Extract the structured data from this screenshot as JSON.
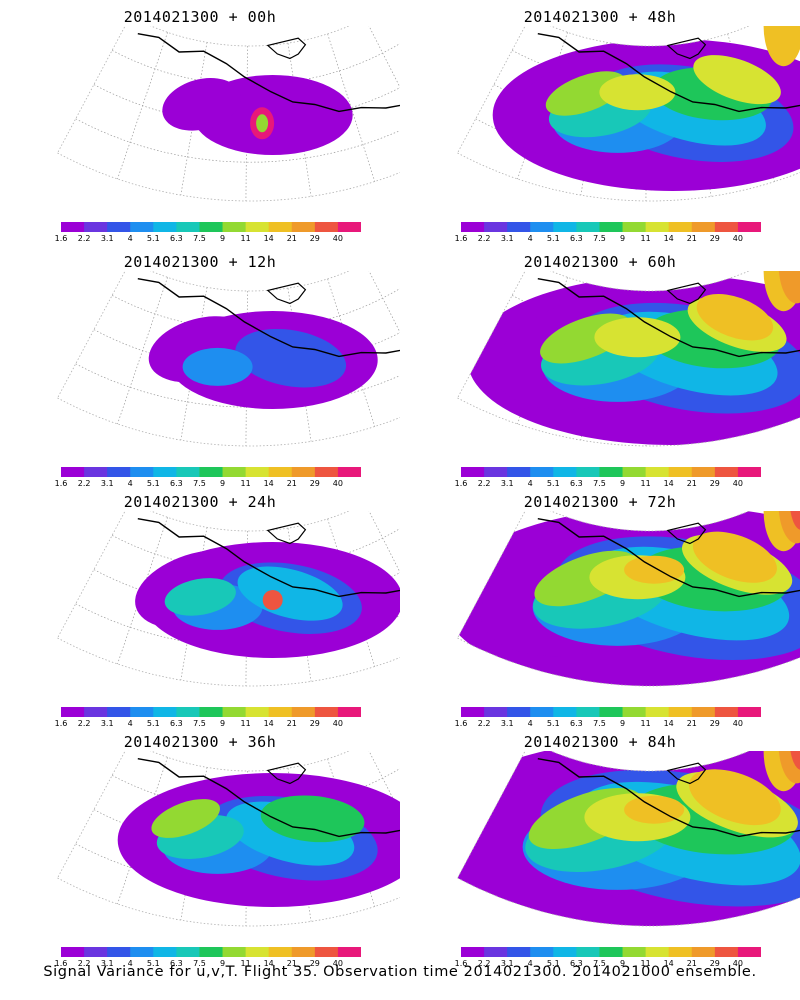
{
  "figure": {
    "caption": "Signal Variance for u,v,T. Flight 35. Observation time 2014021300. 2014021000 ensemble."
  },
  "colorbar": {
    "labels": [
      "1.6",
      "2.2",
      "3.1",
      "4",
      "5.1",
      "6.3",
      "7.5",
      "9",
      "11",
      "14",
      "21",
      "29",
      "40"
    ],
    "colors": [
      "#9b00d6",
      "#6a35e0",
      "#3355e8",
      "#1e8ef0",
      "#10b6e6",
      "#18c8b8",
      "#1ec65a",
      "#93d932",
      "#d7e332",
      "#efc024",
      "#ef9a2a",
      "#ee5540",
      "#e8187a"
    ]
  },
  "panels": [
    {
      "title": "2014021300 + 00h",
      "intensity": 0
    },
    {
      "title": "2014021300 + 48h",
      "intensity": 4
    },
    {
      "title": "2014021300 + 12h",
      "intensity": 1
    },
    {
      "title": "2014021300 + 60h",
      "intensity": 5
    },
    {
      "title": "2014021300 + 24h",
      "intensity": 2
    },
    {
      "title": "2014021300 + 72h",
      "intensity": 6
    },
    {
      "title": "2014021300 + 36h",
      "intensity": 3
    },
    {
      "title": "2014021300 + 84h",
      "intensity": 7
    }
  ]
}
